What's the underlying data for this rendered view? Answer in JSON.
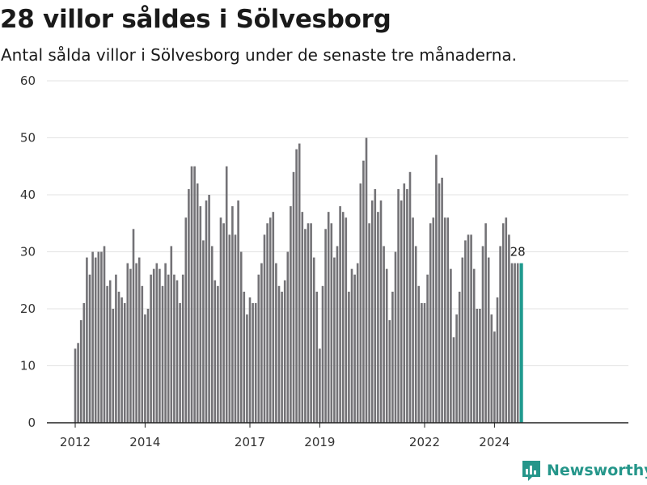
{
  "header": {
    "title": "28 villor såldes i Sölvesborg",
    "subtitle": "Antal sålda villor i Sölvesborg under de senaste tre månaderna."
  },
  "brand": {
    "name": "Newsworthy",
    "icon": "newsworthy-logo-icon"
  },
  "colors": {
    "bar": "#737276",
    "highlight": "#1f9a8e",
    "grid": "#e3e3e3",
    "axis": "#222222",
    "brand": "#25968a"
  },
  "chart_data": {
    "type": "bar",
    "title": "28 villor såldes i Sölvesborg",
    "subtitle": "Antal sålda villor i Sölvesborg under de senaste tre månaderna.",
    "xlabel": "",
    "ylabel": "",
    "ylim": [
      0,
      60
    ],
    "yticks": [
      0,
      10,
      20,
      30,
      40,
      50,
      60
    ],
    "xticks": [
      {
        "label": "2012",
        "date": "2012-01"
      },
      {
        "label": "2014",
        "date": "2014-01"
      },
      {
        "label": "2017",
        "date": "2017-01"
      },
      {
        "label": "2019",
        "date": "2019-01"
      },
      {
        "label": "2022",
        "date": "2022-01"
      },
      {
        "label": "2024",
        "date": "2024-01"
      }
    ],
    "x_start": "2012-01",
    "x_end": "2024-09",
    "grid": true,
    "highlight_last": true,
    "annotation": {
      "text": "28",
      "date": "2024-09"
    },
    "values": [
      13,
      14,
      18,
      21,
      29,
      26,
      30,
      29,
      30,
      30,
      31,
      24,
      25,
      20,
      26,
      23,
      22,
      21,
      28,
      27,
      34,
      28,
      29,
      24,
      19,
      20,
      26,
      27,
      28,
      27,
      24,
      28,
      26,
      31,
      26,
      25,
      21,
      26,
      36,
      41,
      45,
      45,
      42,
      38,
      32,
      39,
      40,
      31,
      25,
      24,
      36,
      35,
      45,
      33,
      38,
      33,
      39,
      30,
      23,
      19,
      22,
      21,
      21,
      26,
      28,
      33,
      35,
      36,
      37,
      28,
      24,
      23,
      25,
      30,
      38,
      44,
      48,
      49,
      37,
      34,
      35,
      35,
      29,
      23,
      13,
      24,
      34,
      37,
      35,
      29,
      31,
      38,
      37,
      36,
      23,
      27,
      26,
      28,
      42,
      46,
      50,
      35,
      39,
      41,
      37,
      39,
      31,
      27,
      18,
      23,
      30,
      41,
      39,
      42,
      41,
      44,
      36,
      31,
      24,
      21,
      21,
      26,
      35,
      36,
      47,
      42,
      43,
      36,
      36,
      27,
      15,
      19,
      23,
      29,
      32,
      33,
      33,
      27,
      20,
      20,
      31,
      35,
      29,
      19,
      16,
      22,
      31,
      35,
      36,
      33,
      28,
      28,
      28,
      28
    ]
  }
}
